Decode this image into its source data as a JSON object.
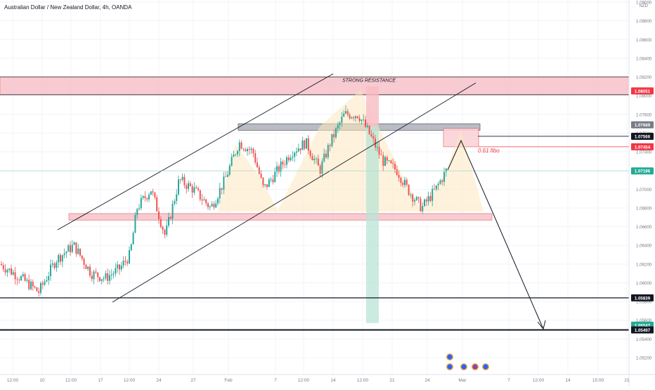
{
  "header": {
    "title": "Australian Dollar / New Zealand Dollar, 4h, OANDA",
    "currency": "NZD"
  },
  "chart_data": {
    "type": "candlestick",
    "symbol": "Australian Dollar / New Zealand Dollar",
    "timeframe": "4h",
    "exchange": "OANDA",
    "ylim": [
      1.051,
      1.09
    ],
    "y_ticks": [
      1.052,
      1.054,
      1.056,
      1.058,
      1.06,
      1.062,
      1.064,
      1.066,
      1.068,
      1.07,
      1.072,
      1.074,
      1.076,
      1.078,
      1.08,
      1.082,
      1.084,
      1.086,
      1.088,
      1.09
    ],
    "x_ticks": [
      "12:00",
      "10",
      "12:00",
      "17",
      "12:00",
      "24",
      "27",
      "Feb",
      "7",
      "12:00",
      "14",
      "12:00",
      "21",
      "24",
      "Mar",
      "7",
      "12:00",
      "14",
      "15:00",
      "21"
    ],
    "price_labels": [
      {
        "text": "1.08051",
        "value": 1.08051,
        "color": "#f23645"
      },
      {
        "text": "1.07689",
        "value": 1.07689,
        "color": "#787b86"
      },
      {
        "text": "1.07566",
        "value": 1.07566,
        "color": "#131722"
      },
      {
        "text": "1.07454",
        "value": 1.07454,
        "color": "#f23645"
      },
      {
        "text": "1.07196",
        "value": 1.07196,
        "color": "#22ab94"
      },
      {
        "text": "1.05839",
        "value": 1.05839,
        "color": "#131722"
      },
      {
        "text": "1.05547",
        "value": 1.05547,
        "color": "#22ab94"
      },
      {
        "text": "1.05497",
        "value": 1.05497,
        "color": "#131722"
      }
    ],
    "annotations": [
      {
        "text": "STRONG RESISTANCE"
      },
      {
        "text": "0.61 fibo"
      }
    ],
    "zones": [
      {
        "name": "strong-resistance",
        "from": 1.0801,
        "to": 1.082,
        "color": "#f7c6cd"
      },
      {
        "name": "support",
        "from": 1.0667,
        "to": 1.0674,
        "color": "#f7c6cd"
      },
      {
        "name": "neckline",
        "from": 1.0763,
        "to": 1.077,
        "color": "#b2b5be"
      },
      {
        "name": "fibo-box",
        "from": 1.07454,
        "to": 1.0765,
        "color": "#fbd3d8"
      }
    ],
    "horizontal_lines": [
      1.07566,
      1.07454,
      1.05839,
      1.05497
    ],
    "grid": true,
    "candle_colors": {
      "up": "#26a69a",
      "down": "#ef5350"
    }
  }
}
